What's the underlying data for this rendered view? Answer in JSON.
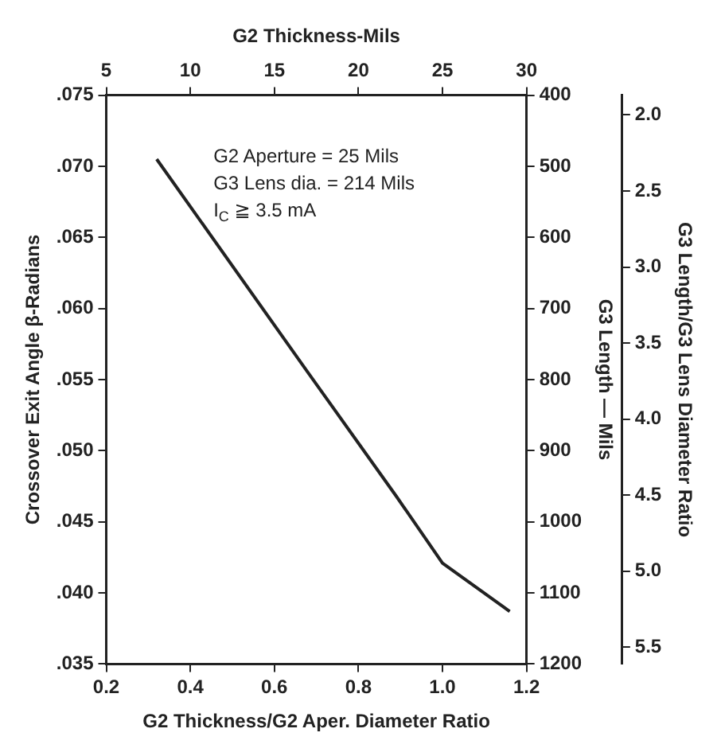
{
  "chart_data": {
    "type": "line",
    "xlabel": "G2 Thickness/G2 Aper. Diameter Ratio",
    "ylabel": "Crossover Exit Angle β-Radians",
    "x2label": "G2 Thickness-Mils",
    "y2label": "G3 Length — Mils",
    "y3label": "G3 Length/G3 Lens Diameter Ratio",
    "annotations": [
      "G2 Aperture = 25 Mils",
      "G3 Lens dia. = 214 Mils",
      "I$_{C}$ ≧ 3.5 mA"
    ],
    "series": [
      {
        "color": "#222222",
        "x": [
          0.32,
          0.68,
          0.89,
          1.0,
          1.16
        ],
        "values": [
          0.0705,
          0.0555,
          0.0468,
          0.0421,
          0.0387
        ]
      }
    ],
    "marker": "none",
    "line_style": "solid",
    "grid": false,
    "xlim": [
      0.2,
      1.2
    ],
    "xticks": [
      {
        "value": 0.2,
        "label": "0.2"
      },
      {
        "value": 0.4,
        "label": "0.4"
      },
      {
        "value": 0.6,
        "label": "0.6"
      },
      {
        "value": 0.8,
        "label": "0.8"
      },
      {
        "value": 1.0,
        "label": "1.0"
      },
      {
        "value": 1.2,
        "label": "1.2"
      }
    ],
    "ylim": [
      0.035,
      0.075
    ],
    "yticks": [
      {
        "value": 0.035,
        "label": ".035"
      },
      {
        "value": 0.04,
        "label": ".040"
      },
      {
        "value": 0.045,
        "label": ".045"
      },
      {
        "value": 0.05,
        "label": ".050"
      },
      {
        "value": 0.055,
        "label": ".055"
      },
      {
        "value": 0.06,
        "label": ".060"
      },
      {
        "value": 0.065,
        "label": ".065"
      },
      {
        "value": 0.07,
        "label": ".070"
      },
      {
        "value": 0.075,
        "label": ".075"
      }
    ],
    "x2lim": [
      5,
      30
    ],
    "x2ticks": [
      5,
      10,
      15,
      20,
      25,
      30
    ],
    "y2lim": [
      1200,
      400
    ],
    "y2ticks": [
      400,
      500,
      600,
      700,
      800,
      900,
      1000,
      1100,
      1200
    ],
    "y3lim": [
      5.61,
      1.87
    ],
    "y3ticks": [
      {
        "value": 2.0,
        "label": "2.0"
      },
      {
        "value": 2.5,
        "label": "2.5"
      },
      {
        "value": 3.0,
        "label": "3.0"
      },
      {
        "value": 3.5,
        "label": "3.5"
      },
      {
        "value": 4.0,
        "label": "4.0"
      },
      {
        "value": 4.5,
        "label": "4.5"
      },
      {
        "value": 5.0,
        "label": "5.0"
      },
      {
        "value": 5.5,
        "label": "5.5"
      }
    ]
  }
}
